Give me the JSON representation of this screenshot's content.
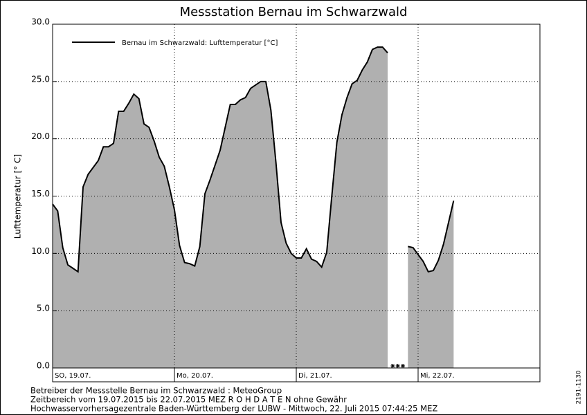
{
  "chart_data": {
    "type": "line",
    "title": "Messstation Bernau im Schwarzwald",
    "ylabel": "Lufttemperatur [° C]",
    "side_label": "2191-1130",
    "footer": [
      "Betreiber der Messstelle Bernau im Schwarzwald : MeteoGroup",
      "Zeitbereich vom 19.07.2015 bis 22.07.2015    MEZ    R O H D A T E N ohne Gewähr",
      "Hochwasservorhersagezentrale Baden-Württemberg der LUBW - Mittwoch, 22. Juli 2015 07:44:25 MEZ"
    ],
    "legend": "upper left",
    "grid": true,
    "xlim": [
      0,
      96
    ],
    "xticks": [
      {
        "value": 0,
        "label": "SO, 19.07."
      },
      {
        "value": 24,
        "label": "Mo, 20.07."
      },
      {
        "value": 48,
        "label": "Di, 21.07."
      },
      {
        "value": 72,
        "label": "Mi, 22.07."
      }
    ],
    "ylim": [
      0,
      30
    ],
    "yticks": [
      {
        "value": 0,
        "label": "0.0"
      },
      {
        "value": 5,
        "label": "5.0"
      },
      {
        "value": 10,
        "label": "10.0"
      },
      {
        "value": 15,
        "label": "15.0"
      },
      {
        "value": 20,
        "label": "20.0"
      },
      {
        "value": 25,
        "label": "25.0"
      },
      {
        "value": 30,
        "label": "30.0"
      }
    ],
    "series": [
      {
        "name": "Bernau im Schwarzwald: Lufttemperatur [°C]",
        "color": "#000000",
        "fill": "#b0b0b0",
        "values": [
          14.3,
          13.7,
          10.5,
          9.0,
          8.7,
          8.4,
          15.8,
          16.9,
          17.5,
          18.1,
          19.3,
          19.3,
          19.6,
          22.4,
          22.4,
          23.1,
          23.9,
          23.5,
          21.3,
          21.0,
          19.8,
          18.4,
          17.6,
          15.8,
          13.8,
          10.7,
          9.2,
          9.1,
          8.9,
          10.6,
          15.2,
          16.4,
          17.7,
          19.0,
          21.0,
          23.0,
          23.0,
          23.4,
          23.6,
          24.4,
          24.7,
          25.0,
          25.0,
          22.5,
          17.9,
          12.7,
          10.9,
          10.0,
          9.6,
          9.6,
          10.4,
          9.5,
          9.3,
          8.8,
          10.1,
          15.0,
          19.7,
          22.1,
          23.6,
          24.8,
          25.1,
          26.0,
          26.7,
          27.8,
          28.0,
          28.0,
          27.5,
          null,
          null,
          null,
          10.6,
          10.5,
          9.9,
          9.3,
          8.4,
          8.5,
          9.4,
          10.8,
          12.7,
          14.6
        ]
      }
    ]
  }
}
